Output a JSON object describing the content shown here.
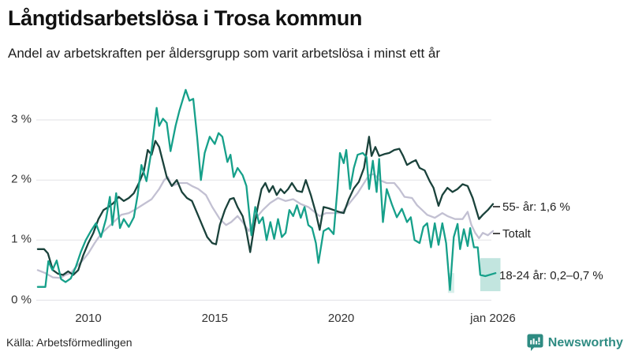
{
  "header": {
    "title": "Långtidsarbetslösa i Trosa kommun",
    "subtitle": "Andel av arbetskraften per åldersgrupp som varit arbetslösa i minst ett år"
  },
  "footer": {
    "source": "Källa: Arbetsförmedlingen",
    "brand": "Newsworthy",
    "brand_color": "#2e8b82"
  },
  "chart_data": {
    "type": "line",
    "title": "Långtidsarbetslösa i Trosa kommun",
    "subtitle": "Andel av arbetskraften per åldersgrupp som varit arbetslösa i minst ett år",
    "source": "Källa: Arbetsförmedlingen",
    "xlabel": "",
    "ylabel": "",
    "ylim": [
      0,
      3.7
    ],
    "xlim_years": [
      2008.0,
      2026.35
    ],
    "grid": true,
    "grid_color": "#e2e2e6",
    "legend_position": "right-end-labels",
    "yticks": [
      {
        "label": "0 %",
        "value": 0
      },
      {
        "label": "1 %",
        "value": 1
      },
      {
        "label": "2 %",
        "value": 2
      },
      {
        "label": "3 %",
        "value": 3
      }
    ],
    "xticks": [
      {
        "label": "2010",
        "year": 2010
      },
      {
        "label": "2015",
        "year": 2015
      },
      {
        "label": "2020",
        "year": 2020
      },
      {
        "label": "jan 2026",
        "year": 2026
      }
    ],
    "uncertainty_bands": [
      {
        "series": "18-24 år",
        "from_year": 2024.22,
        "to_year": 2024.47,
        "low": 0.12,
        "high": 0.45,
        "color": "#8fd0c5",
        "opacity": 0.35
      },
      {
        "series": "18-24 år",
        "from_year": 2025.5,
        "to_year": 2026.3,
        "low": 0.15,
        "high": 0.7,
        "color": "#8fd0c5",
        "opacity": 0.55
      }
    ],
    "series": [
      {
        "id": "55-ar",
        "name": "55- år",
        "label": "55- år: 1,6 %",
        "end_value": "1,6 %",
        "color": "#1a423b",
        "points": [
          [
            2008.0,
            0.85
          ],
          [
            2008.25,
            0.85
          ],
          [
            2008.4,
            0.78
          ],
          [
            2008.6,
            0.5
          ],
          [
            2008.8,
            0.44
          ],
          [
            2009.0,
            0.42
          ],
          [
            2009.2,
            0.48
          ],
          [
            2009.4,
            0.42
          ],
          [
            2009.6,
            0.5
          ],
          [
            2009.8,
            0.75
          ],
          [
            2010.0,
            0.95
          ],
          [
            2010.2,
            1.12
          ],
          [
            2010.4,
            1.35
          ],
          [
            2010.6,
            1.5
          ],
          [
            2010.8,
            1.55
          ],
          [
            2011.0,
            1.62
          ],
          [
            2011.2,
            1.72
          ],
          [
            2011.4,
            1.65
          ],
          [
            2011.6,
            1.7
          ],
          [
            2011.8,
            1.78
          ],
          [
            2012.0,
            1.95
          ],
          [
            2012.2,
            2.15
          ],
          [
            2012.35,
            2.5
          ],
          [
            2012.5,
            2.42
          ],
          [
            2012.65,
            2.65
          ],
          [
            2012.8,
            2.55
          ],
          [
            2012.95,
            2.3
          ],
          [
            2013.1,
            2.05
          ],
          [
            2013.3,
            1.9
          ],
          [
            2013.5,
            2.0
          ],
          [
            2013.7,
            1.8
          ],
          [
            2013.9,
            1.7
          ],
          [
            2014.1,
            1.65
          ],
          [
            2014.3,
            1.45
          ],
          [
            2014.5,
            1.25
          ],
          [
            2014.7,
            1.05
          ],
          [
            2014.9,
            0.95
          ],
          [
            2015.05,
            0.93
          ],
          [
            2015.2,
            1.25
          ],
          [
            2015.4,
            1.5
          ],
          [
            2015.6,
            1.68
          ],
          [
            2015.75,
            1.7
          ],
          [
            2015.9,
            1.55
          ],
          [
            2016.1,
            1.4
          ],
          [
            2016.25,
            1.15
          ],
          [
            2016.4,
            0.8
          ],
          [
            2016.55,
            1.2
          ],
          [
            2016.7,
            1.55
          ],
          [
            2016.85,
            1.85
          ],
          [
            2017.0,
            1.95
          ],
          [
            2017.15,
            1.8
          ],
          [
            2017.3,
            1.9
          ],
          [
            2017.45,
            1.75
          ],
          [
            2017.6,
            1.85
          ],
          [
            2017.75,
            1.78
          ],
          [
            2017.9,
            1.85
          ],
          [
            2018.05,
            1.95
          ],
          [
            2018.25,
            1.82
          ],
          [
            2018.45,
            1.8
          ],
          [
            2018.6,
            2.0
          ],
          [
            2018.8,
            1.75
          ],
          [
            2019.0,
            1.45
          ],
          [
            2019.15,
            1.17
          ],
          [
            2019.3,
            1.55
          ],
          [
            2019.5,
            1.53
          ],
          [
            2019.7,
            1.5
          ],
          [
            2019.9,
            1.47
          ],
          [
            2020.1,
            1.45
          ],
          [
            2020.3,
            1.68
          ],
          [
            2020.5,
            1.86
          ],
          [
            2020.7,
            1.97
          ],
          [
            2020.9,
            2.2
          ],
          [
            2021.1,
            2.72
          ],
          [
            2021.2,
            2.4
          ],
          [
            2021.35,
            2.55
          ],
          [
            2021.5,
            2.4
          ],
          [
            2021.7,
            2.43
          ],
          [
            2021.9,
            2.45
          ],
          [
            2022.1,
            2.5
          ],
          [
            2022.3,
            2.52
          ],
          [
            2022.45,
            2.4
          ],
          [
            2022.6,
            2.25
          ],
          [
            2022.8,
            2.3
          ],
          [
            2022.95,
            2.33
          ],
          [
            2023.1,
            2.2
          ],
          [
            2023.3,
            2.16
          ],
          [
            2023.5,
            1.98
          ],
          [
            2023.65,
            1.87
          ],
          [
            2023.85,
            1.57
          ],
          [
            2024.0,
            1.75
          ],
          [
            2024.2,
            1.87
          ],
          [
            2024.4,
            1.8
          ],
          [
            2024.6,
            1.85
          ],
          [
            2024.8,
            1.93
          ],
          [
            2025.0,
            1.9
          ],
          [
            2025.2,
            1.7
          ],
          [
            2025.45,
            1.35
          ],
          [
            2025.6,
            1.42
          ],
          [
            2025.8,
            1.5
          ],
          [
            2026.0,
            1.6
          ]
        ]
      },
      {
        "id": "totalt",
        "name": "Totalt",
        "label": "Totalt",
        "end_value": "",
        "color": "#c2c0d2",
        "points": [
          [
            2008.0,
            0.5
          ],
          [
            2008.3,
            0.45
          ],
          [
            2008.6,
            0.38
          ],
          [
            2008.9,
            0.37
          ],
          [
            2009.1,
            0.42
          ],
          [
            2009.3,
            0.45
          ],
          [
            2009.5,
            0.55
          ],
          [
            2009.75,
            0.65
          ],
          [
            2010.0,
            0.78
          ],
          [
            2010.25,
            0.95
          ],
          [
            2010.5,
            1.1
          ],
          [
            2010.75,
            1.2
          ],
          [
            2011.0,
            1.3
          ],
          [
            2011.3,
            1.42
          ],
          [
            2011.6,
            1.45
          ],
          [
            2011.9,
            1.52
          ],
          [
            2012.2,
            1.6
          ],
          [
            2012.5,
            1.68
          ],
          [
            2012.8,
            1.85
          ],
          [
            2013.0,
            2.0
          ],
          [
            2013.15,
            2.05
          ],
          [
            2013.3,
            1.9
          ],
          [
            2013.6,
            1.95
          ],
          [
            2013.9,
            1.95
          ],
          [
            2014.1,
            1.9
          ],
          [
            2014.35,
            1.85
          ],
          [
            2014.65,
            1.75
          ],
          [
            2014.9,
            1.55
          ],
          [
            2015.2,
            1.35
          ],
          [
            2015.45,
            1.25
          ],
          [
            2015.65,
            1.3
          ],
          [
            2015.9,
            1.4
          ],
          [
            2016.1,
            1.3
          ],
          [
            2016.35,
            1.15
          ],
          [
            2016.6,
            1.35
          ],
          [
            2016.9,
            1.5
          ],
          [
            2017.2,
            1.62
          ],
          [
            2017.5,
            1.7
          ],
          [
            2017.8,
            1.65
          ],
          [
            2018.1,
            1.68
          ],
          [
            2018.4,
            1.6
          ],
          [
            2018.7,
            1.55
          ],
          [
            2019.0,
            1.45
          ],
          [
            2019.15,
            1.4
          ],
          [
            2019.4,
            1.45
          ],
          [
            2019.7,
            1.45
          ],
          [
            2020.0,
            1.45
          ],
          [
            2020.3,
            1.6
          ],
          [
            2020.65,
            1.78
          ],
          [
            2020.9,
            1.95
          ],
          [
            2021.1,
            2.08
          ],
          [
            2021.3,
            2.1
          ],
          [
            2021.5,
            2.0
          ],
          [
            2021.8,
            1.95
          ],
          [
            2022.1,
            1.95
          ],
          [
            2022.3,
            1.85
          ],
          [
            2022.5,
            1.72
          ],
          [
            2022.8,
            1.7
          ],
          [
            2023.0,
            1.58
          ],
          [
            2023.2,
            1.5
          ],
          [
            2023.4,
            1.42
          ],
          [
            2023.7,
            1.37
          ],
          [
            2024.0,
            1.45
          ],
          [
            2024.2,
            1.4
          ],
          [
            2024.5,
            1.35
          ],
          [
            2024.8,
            1.35
          ],
          [
            2025.0,
            1.47
          ],
          [
            2025.15,
            1.25
          ],
          [
            2025.3,
            1.12
          ],
          [
            2025.45,
            1.03
          ],
          [
            2025.6,
            1.12
          ],
          [
            2025.8,
            1.08
          ],
          [
            2026.0,
            1.15
          ]
        ]
      },
      {
        "id": "18-24-ar",
        "name": "18-24 år",
        "label": "18-24 år: 0,2–0,7 %",
        "end_value": "0,2–0,7 %",
        "color": "#16a08a",
        "points": [
          [
            2008.0,
            0.22
          ],
          [
            2008.3,
            0.22
          ],
          [
            2008.42,
            0.65
          ],
          [
            2008.58,
            0.5
          ],
          [
            2008.75,
            0.66
          ],
          [
            2008.92,
            0.35
          ],
          [
            2009.1,
            0.3
          ],
          [
            2009.3,
            0.36
          ],
          [
            2009.5,
            0.55
          ],
          [
            2009.7,
            0.8
          ],
          [
            2009.9,
            1.0
          ],
          [
            2010.1,
            1.15
          ],
          [
            2010.3,
            1.28
          ],
          [
            2010.5,
            1.05
          ],
          [
            2010.7,
            1.35
          ],
          [
            2010.85,
            1.72
          ],
          [
            2010.95,
            1.25
          ],
          [
            2011.1,
            1.78
          ],
          [
            2011.25,
            1.2
          ],
          [
            2011.4,
            1.35
          ],
          [
            2011.6,
            1.22
          ],
          [
            2011.8,
            1.38
          ],
          [
            2011.95,
            1.75
          ],
          [
            2012.1,
            2.25
          ],
          [
            2012.3,
            1.98
          ],
          [
            2012.5,
            2.5
          ],
          [
            2012.7,
            3.2
          ],
          [
            2012.8,
            2.9
          ],
          [
            2012.95,
            3.02
          ],
          [
            2013.1,
            2.95
          ],
          [
            2013.25,
            2.48
          ],
          [
            2013.45,
            2.9
          ],
          [
            2013.6,
            3.15
          ],
          [
            2013.85,
            3.5
          ],
          [
            2014.0,
            3.32
          ],
          [
            2014.15,
            3.35
          ],
          [
            2014.3,
            2.72
          ],
          [
            2014.45,
            2.0
          ],
          [
            2014.6,
            2.45
          ],
          [
            2014.8,
            2.72
          ],
          [
            2015.0,
            2.6
          ],
          [
            2015.15,
            2.78
          ],
          [
            2015.3,
            2.72
          ],
          [
            2015.5,
            2.3
          ],
          [
            2015.62,
            2.42
          ],
          [
            2015.75,
            2.05
          ],
          [
            2015.9,
            2.2
          ],
          [
            2016.1,
            2.08
          ],
          [
            2016.25,
            1.9
          ],
          [
            2016.45,
            1.08
          ],
          [
            2016.6,
            1.55
          ],
          [
            2016.75,
            1.28
          ],
          [
            2016.9,
            1.38
          ],
          [
            2017.05,
            1.0
          ],
          [
            2017.2,
            1.3
          ],
          [
            2017.35,
            1.02
          ],
          [
            2017.5,
            1.35
          ],
          [
            2017.65,
            1.05
          ],
          [
            2017.8,
            1.12
          ],
          [
            2017.95,
            1.5
          ],
          [
            2018.1,
            1.4
          ],
          [
            2018.25,
            1.58
          ],
          [
            2018.4,
            1.37
          ],
          [
            2018.55,
            1.55
          ],
          [
            2018.7,
            1.25
          ],
          [
            2018.85,
            1.2
          ],
          [
            2019.0,
            0.95
          ],
          [
            2019.1,
            0.62
          ],
          [
            2019.3,
            1.15
          ],
          [
            2019.5,
            1.2
          ],
          [
            2019.7,
            1.1
          ],
          [
            2019.85,
            1.85
          ],
          [
            2019.95,
            2.45
          ],
          [
            2020.1,
            2.28
          ],
          [
            2020.2,
            2.5
          ],
          [
            2020.35,
            1.85
          ],
          [
            2020.5,
            2.2
          ],
          [
            2020.65,
            2.42
          ],
          [
            2020.85,
            2.45
          ],
          [
            2021.0,
            2.38
          ],
          [
            2021.1,
            1.85
          ],
          [
            2021.25,
            2.32
          ],
          [
            2021.4,
            1.8
          ],
          [
            2021.5,
            2.35
          ],
          [
            2021.65,
            1.3
          ],
          [
            2021.8,
            1.85
          ],
          [
            2022.0,
            1.6
          ],
          [
            2022.2,
            1.38
          ],
          [
            2022.4,
            1.52
          ],
          [
            2022.6,
            1.3
          ],
          [
            2022.75,
            1.38
          ],
          [
            2022.9,
            1.0
          ],
          [
            2023.1,
            0.95
          ],
          [
            2023.25,
            1.22
          ],
          [
            2023.4,
            1.28
          ],
          [
            2023.55,
            0.88
          ],
          [
            2023.7,
            1.28
          ],
          [
            2023.85,
            0.92
          ],
          [
            2024.0,
            1.28
          ],
          [
            2024.15,
            0.95
          ],
          [
            2024.3,
            0.17
          ],
          [
            2024.45,
            1.05
          ],
          [
            2024.6,
            1.27
          ],
          [
            2024.7,
            0.85
          ],
          [
            2024.85,
            1.18
          ],
          [
            2025.0,
            0.9
          ],
          [
            2025.1,
            1.2
          ],
          [
            2025.25,
            0.88
          ],
          [
            2025.4,
            0.88
          ],
          [
            2025.5,
            0.42
          ],
          [
            2025.7,
            0.4
          ],
          [
            2026.1,
            0.45
          ]
        ]
      }
    ]
  }
}
